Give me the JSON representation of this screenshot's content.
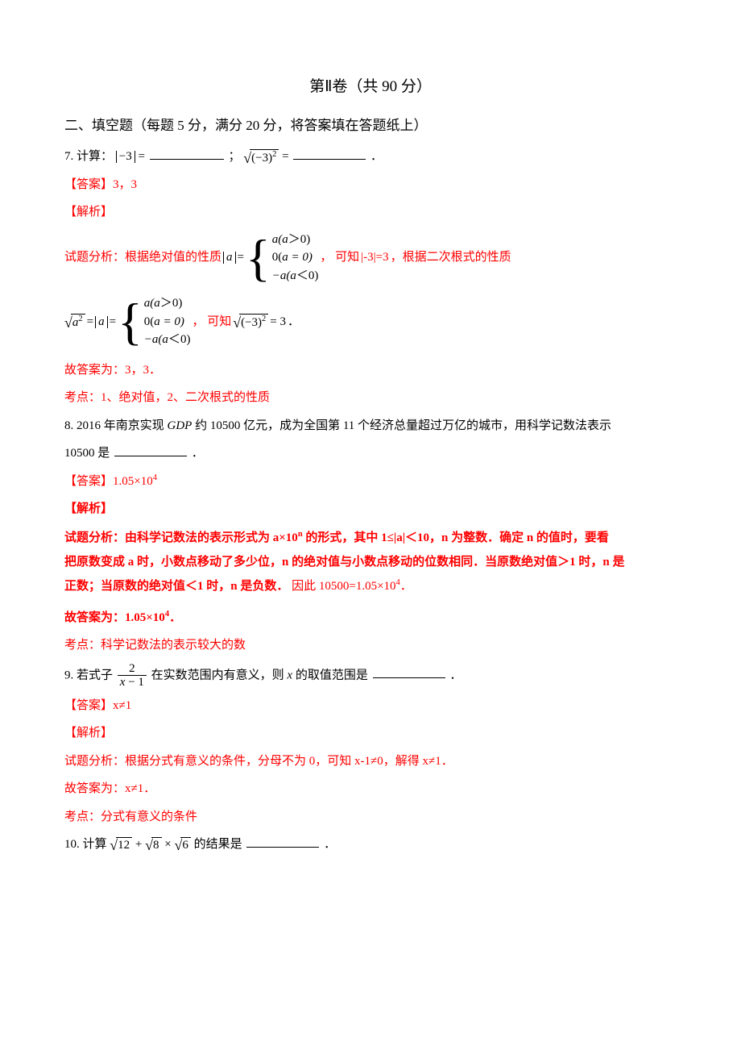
{
  "title": "第Ⅱ卷（共 90 分）",
  "section": "二、填空题（每题 5 分，满分 20 分，将答案填在答题纸上）",
  "q7": {
    "prefix": "7.  计算：",
    "abs_expr": "−3",
    "eq1": " = ",
    "sep": "；",
    "sqrt_expr": "(−3)",
    "sqrt_sup": "2",
    "eq2": " = ",
    "period": "．",
    "answer_label": "【答案】",
    "answer_val": "3，3",
    "jiexi": "【解析】",
    "analysis_prefix": "试题分析：根据绝对值的性质",
    "a_abs": "a",
    "eq": " = ",
    "case1": "a(a",
    "gt": "＞",
    "zero": "0)",
    "case2_a": "0(",
    "case2_b": "a = 0)",
    "case3": "−a(a",
    "lt": "＜",
    "analysis_mid1": " ， 可知",
    "mid_expr": "|-3|=3",
    "analysis_mid2": "，根据二次根式的性质",
    "sqrt_a2": "a",
    "row2_mid": " ， 可知",
    "row2_eq": " = 3",
    "row2_end": "．",
    "gu_ans": "故答案为：3，3．",
    "kaodian": "考点：1、绝对值，2、二次根式的性质"
  },
  "q8": {
    "text_a": "8.  2016 年南京实现 ",
    "gdp": "GDP",
    "text_b": " 约 10500 亿元，成为全国第 11 个经济总量超过万亿的城市，用科学记数法表示",
    "text_c": "10500 是",
    "period": "．",
    "answer_label": "【答案】",
    "answer_val_a": "1.05×10",
    "answer_sup": "4",
    "jiexi": "【解析】",
    "img_l1a": "试题分析：由科学记数法的表示形式为 a×10",
    "img_l1sup": "n",
    "img_l1b": " 的形式，其中 1≤",
    "img_l1c": "|a|",
    "img_l1d": "＜10，n 为整数．确定 n 的值时，要看",
    "img_l2": "把原数变成 a 时，小数点移动了多少位，n 的绝对值与小数点移动的位数相同．当原数绝对值＞1 时，n 是",
    "img_l3a": "正数；当原数的绝对值＜1 时，n 是负数．",
    "img_l3b": "因此 10500=1.05×10",
    "img_l3sup": "4",
    "img_l3c": "．",
    "gu_a": "故答案为：1.05×10",
    "gu_sup": "4",
    "gu_b": "．",
    "kaodian": "考点：科学记数法的表示较大的数"
  },
  "q9": {
    "text_a": "9.  若式子 ",
    "frac_num": "2",
    "frac_den_a": "x",
    "frac_den_b": " − 1",
    "text_b": " 在实数范围内有意义，则 ",
    "x": "x",
    "text_c": " 的取值范围是",
    "period": "．",
    "answer_label": "【答案】",
    "answer_val": "x≠1",
    "jiexi": "【解析】",
    "analysis": "试题分析：根据分式有意义的条件，分母不为 0，可知 x-1≠0，解得 x≠1．",
    "gu_ans": "故答案为：x≠1．",
    "kaodian": "考点：分式有意义的条件"
  },
  "q10": {
    "text_a": "10.  计算",
    "s1": "12",
    "plus": " + ",
    "s2": "8",
    "times": " × ",
    "s3": "6",
    "text_b": " 的结果是",
    "period": "．"
  },
  "blank_widths": {
    "w1": 92,
    "w2": 90,
    "w3": 90,
    "w4": 90
  }
}
